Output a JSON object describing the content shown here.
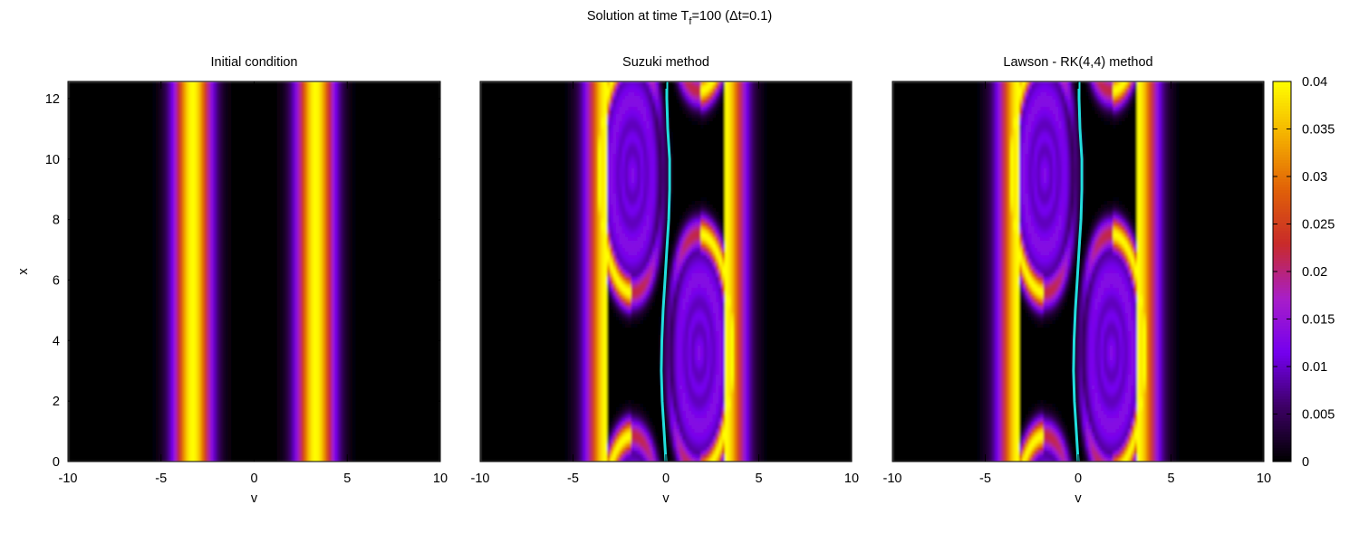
{
  "figure": {
    "title_prefix": "Solution at time T",
    "title_sub": "f",
    "title_suffix": "=100 (Δt=0.1)"
  },
  "colorbar": {
    "colormap": [
      "#000000",
      "#3c0064",
      "#7400ee",
      "#a81ec8",
      "#c82a2a",
      "#e06008",
      "#f4b000",
      "#ffff00"
    ],
    "ticks": [
      "0",
      "0.005",
      "0.01",
      "0.015",
      "0.02",
      "0.025",
      "0.03",
      "0.035",
      "0.04"
    ]
  },
  "chart_data": [
    {
      "type": "heatmap",
      "title": "Initial condition",
      "xlabel": "v",
      "ylabel": "x",
      "xlim": [
        -10,
        10
      ],
      "ylim": [
        0,
        12.566
      ],
      "xticks": [
        "-10",
        "-5",
        "0",
        "5",
        "10"
      ],
      "yticks": [
        "0",
        "2",
        "4",
        "6",
        "8",
        "10",
        "12"
      ],
      "zlim": [
        0,
        0.04
      ],
      "beams": [
        {
          "center": -3.3,
          "width": 0.7,
          "peak": 0.04
        },
        {
          "center": 3.3,
          "width": 0.7,
          "peak": 0.04
        }
      ],
      "has_curve": false
    },
    {
      "type": "heatmap",
      "title": "Suzuki method",
      "xlabel": "v",
      "ylabel": "",
      "xlim": [
        -10,
        10
      ],
      "ylim": [
        0,
        12.566
      ],
      "xticks": [
        "-10",
        "-5",
        "0",
        "5",
        "10"
      ],
      "yticks": [],
      "zlim": [
        0,
        0.04
      ],
      "vortices": [
        {
          "center_v": -1.8,
          "center_x": 9.5,
          "half_width_v": 1.6,
          "half_height_x": 3.5
        },
        {
          "center_v": 1.8,
          "center_x": 3.6,
          "half_width_v": 1.6,
          "half_height_x": 3.5
        }
      ],
      "curve_color": "#22dddd",
      "curve": [
        [
          0.0,
          0.0
        ],
        [
          -0.1,
          1.0
        ],
        [
          -0.2,
          2.0
        ],
        [
          -0.25,
          3.0
        ],
        [
          -0.22,
          4.0
        ],
        [
          -0.15,
          5.0
        ],
        [
          -0.05,
          6.0
        ],
        [
          0.05,
          7.0
        ],
        [
          0.15,
          8.0
        ],
        [
          0.2,
          9.0
        ],
        [
          0.2,
          10.0
        ],
        [
          0.1,
          11.0
        ],
        [
          0.05,
          12.0
        ],
        [
          0.05,
          12.566
        ]
      ],
      "has_curve": true
    },
    {
      "type": "heatmap",
      "title": "Lawson - RK(4,4) method",
      "xlabel": "v",
      "ylabel": "",
      "xlim": [
        -10,
        10
      ],
      "ylim": [
        0,
        12.566
      ],
      "xticks": [
        "-10",
        "-5",
        "0",
        "5",
        "10"
      ],
      "yticks": [],
      "zlim": [
        0,
        0.04
      ],
      "vortices": [
        {
          "center_v": -1.8,
          "center_x": 9.5,
          "half_width_v": 1.6,
          "half_height_x": 3.5
        },
        {
          "center_v": 1.8,
          "center_x": 3.6,
          "half_width_v": 1.6,
          "half_height_x": 3.5
        }
      ],
      "curve_color": "#22dddd",
      "curve": [
        [
          0.0,
          0.0
        ],
        [
          -0.1,
          1.0
        ],
        [
          -0.2,
          2.0
        ],
        [
          -0.25,
          3.0
        ],
        [
          -0.22,
          4.0
        ],
        [
          -0.15,
          5.0
        ],
        [
          -0.05,
          6.0
        ],
        [
          0.05,
          7.0
        ],
        [
          0.15,
          8.0
        ],
        [
          0.2,
          9.0
        ],
        [
          0.2,
          10.0
        ],
        [
          0.1,
          11.0
        ],
        [
          0.05,
          12.0
        ],
        [
          0.05,
          12.566
        ]
      ],
      "has_curve": true
    }
  ]
}
